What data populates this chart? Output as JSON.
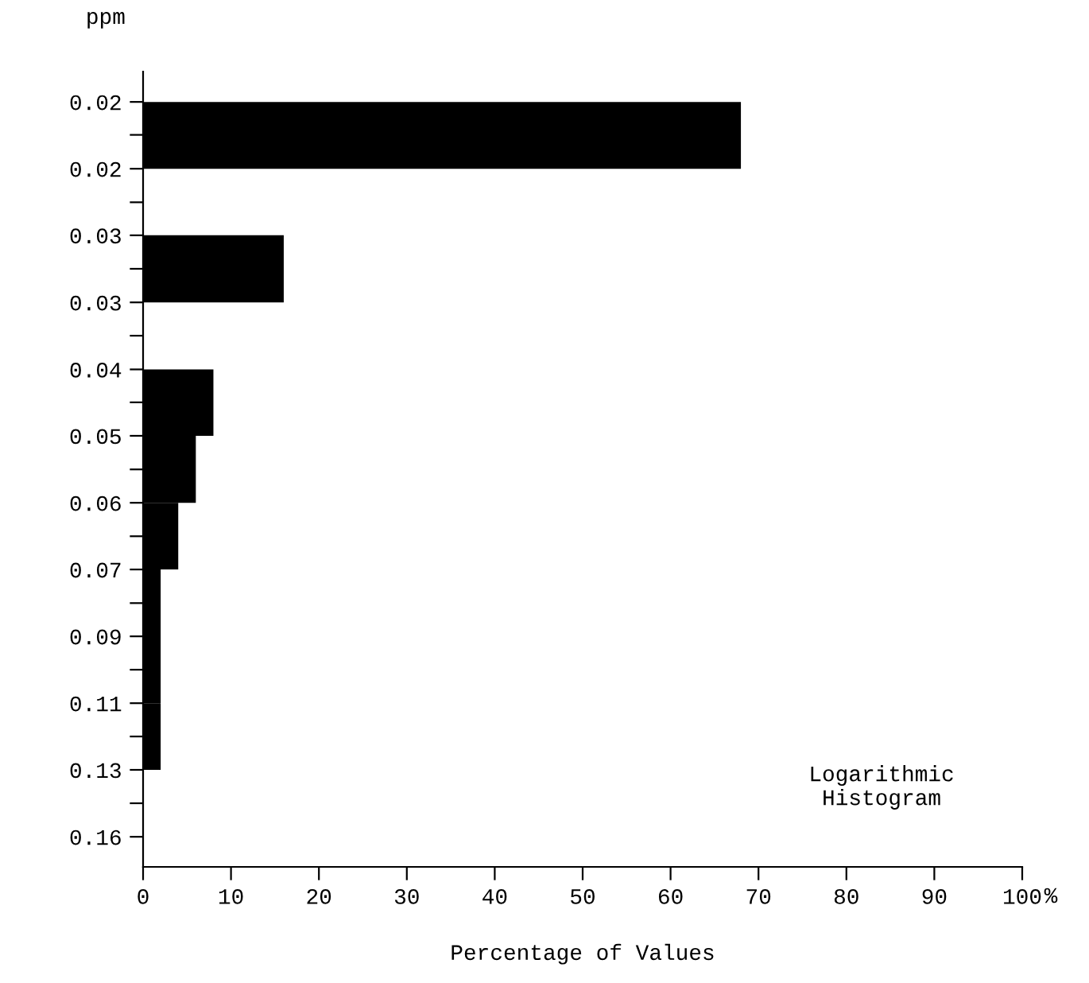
{
  "chart_data": {
    "type": "histogram",
    "orientation": "horizontal",
    "log": "y",
    "ylabel": "ppm",
    "xlabel": "Percentage of Values",
    "bins": [
      0.01795,
      0.0219,
      0.0267,
      0.0326,
      0.0398,
      0.0485,
      0.0592,
      0.0722,
      0.0881,
      0.1075,
      0.1311
    ],
    "values": [
      68,
      0,
      16,
      0,
      8,
      6,
      4,
      2,
      2,
      2
    ],
    "color": "#000000",
    "xlim": [
      0,
      100
    ],
    "xticks": [
      0,
      10,
      20,
      30,
      40,
      50,
      60,
      70,
      80,
      90,
      100
    ],
    "ylim": [
      0.175,
      0.0164
    ],
    "yticks": [
      {
        "value": 0.01795,
        "label": "0.02"
      },
      {
        "value": 0.0198,
        "label": null
      },
      {
        "value": 0.0219,
        "label": "0.02"
      },
      {
        "value": 0.0242,
        "label": null
      },
      {
        "value": 0.0267,
        "label": "0.03"
      },
      {
        "value": 0.0295,
        "label": null
      },
      {
        "value": 0.0326,
        "label": "0.03"
      },
      {
        "value": 0.036,
        "label": null
      },
      {
        "value": 0.0398,
        "label": "0.04"
      },
      {
        "value": 0.0439,
        "label": null
      },
      {
        "value": 0.0485,
        "label": "0.05"
      },
      {
        "value": 0.0536,
        "label": null
      },
      {
        "value": 0.0592,
        "label": "0.06"
      },
      {
        "value": 0.0654,
        "label": null
      },
      {
        "value": 0.0722,
        "label": "0.07"
      },
      {
        "value": 0.0798,
        "label": null
      },
      {
        "value": 0.0881,
        "label": "0.09"
      },
      {
        "value": 0.0973,
        "label": null
      },
      {
        "value": 0.1075,
        "label": "0.11"
      },
      {
        "value": 0.1187,
        "label": null
      },
      {
        "value": 0.1311,
        "label": "0.13"
      },
      {
        "value": 0.1448,
        "label": null
      },
      {
        "value": 0.16,
        "label": "0.16"
      }
    ],
    "grid": false,
    "legend": false,
    "annotations": [
      "%",
      "Logarithmic\nHistogram"
    ]
  }
}
